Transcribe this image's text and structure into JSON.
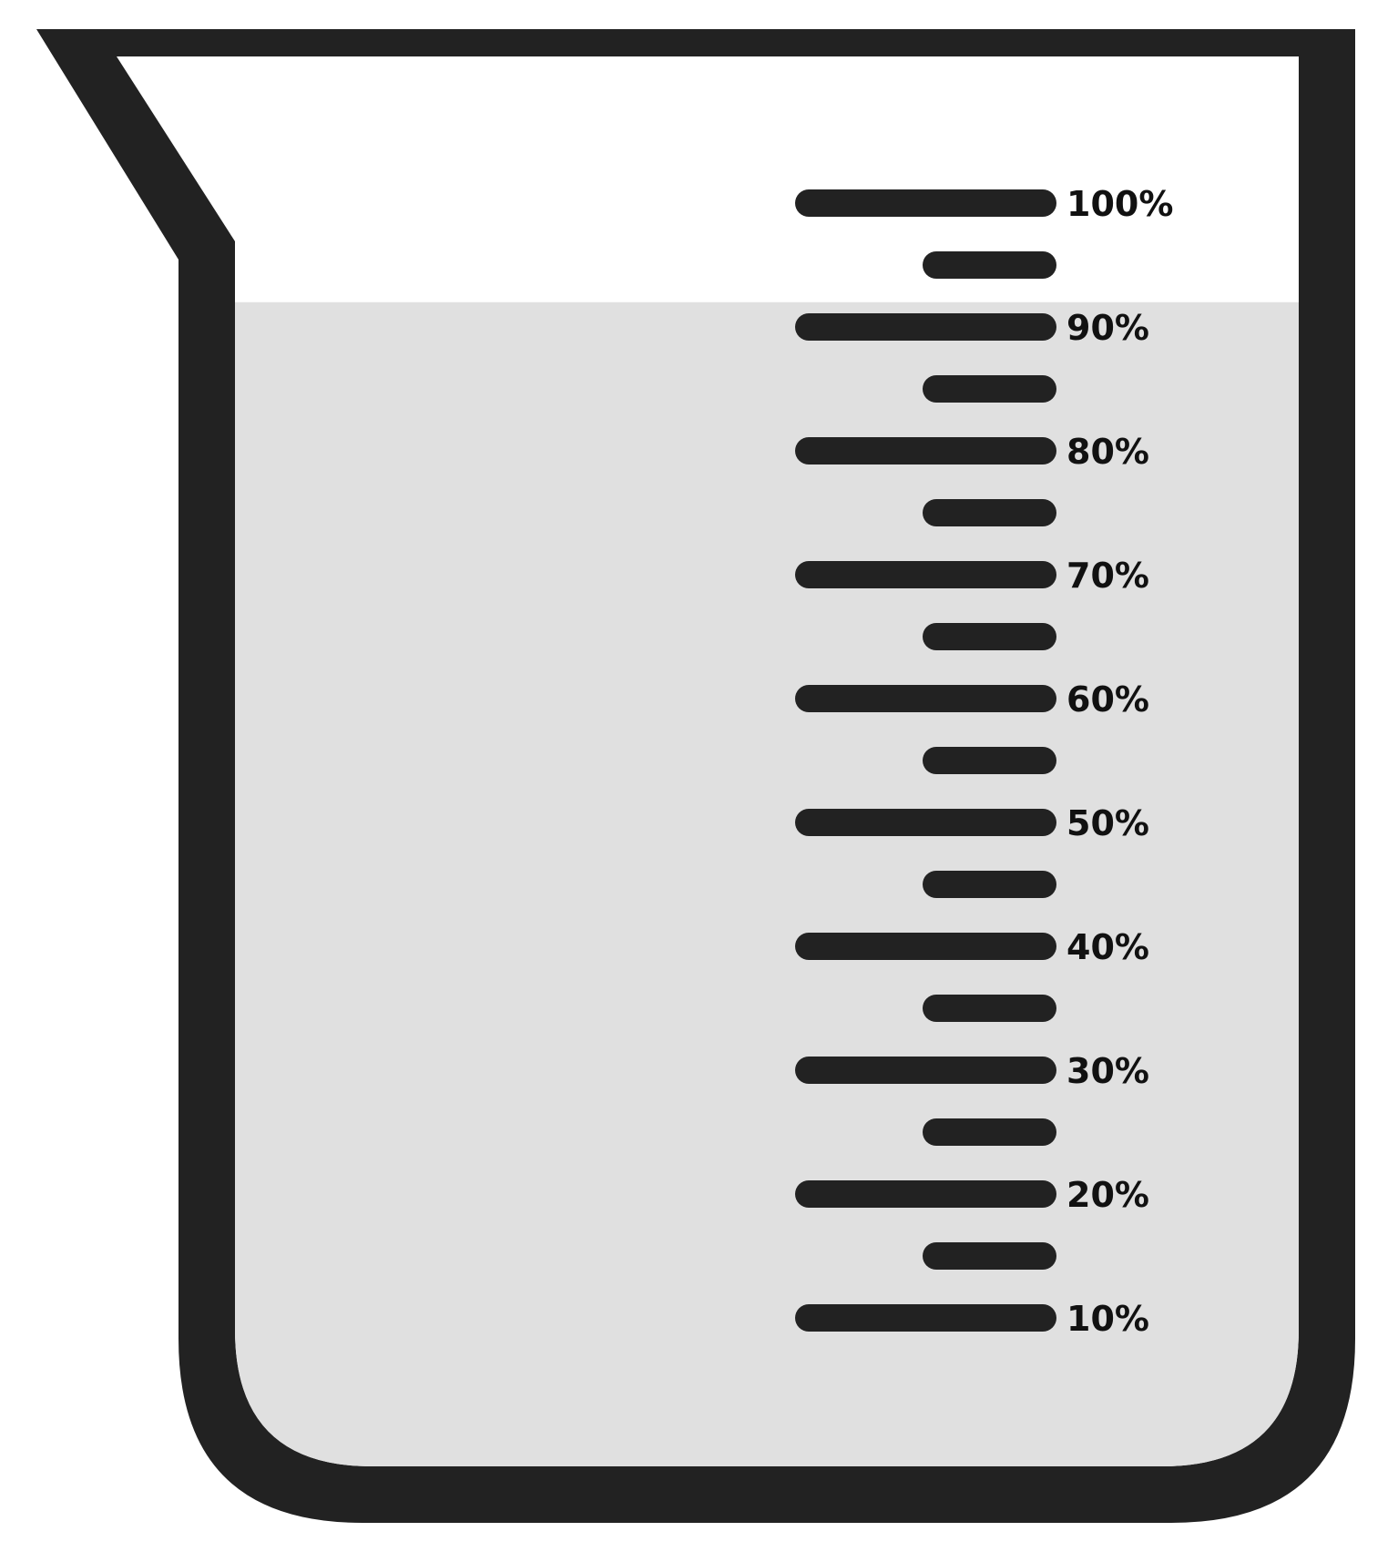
{
  "beaker": {
    "fill_level_percent": 92,
    "colors": {
      "outline": "#222222",
      "liquid": "#e0e0e0",
      "background": "#ffffff",
      "label": "#111111"
    },
    "ticks": [
      {
        "value": 100,
        "label": "100%"
      },
      {
        "value": 95,
        "label": ""
      },
      {
        "value": 90,
        "label": "90%"
      },
      {
        "value": 85,
        "label": ""
      },
      {
        "value": 80,
        "label": "80%"
      },
      {
        "value": 75,
        "label": ""
      },
      {
        "value": 70,
        "label": "70%"
      },
      {
        "value": 65,
        "label": ""
      },
      {
        "value": 60,
        "label": "60%"
      },
      {
        "value": 55,
        "label": ""
      },
      {
        "value": 50,
        "label": "50%"
      },
      {
        "value": 45,
        "label": ""
      },
      {
        "value": 40,
        "label": "40%"
      },
      {
        "value": 35,
        "label": ""
      },
      {
        "value": 30,
        "label": "30%"
      },
      {
        "value": 25,
        "label": ""
      },
      {
        "value": 20,
        "label": "20%"
      },
      {
        "value": 15,
        "label": ""
      },
      {
        "value": 10,
        "label": "10%"
      }
    ]
  }
}
